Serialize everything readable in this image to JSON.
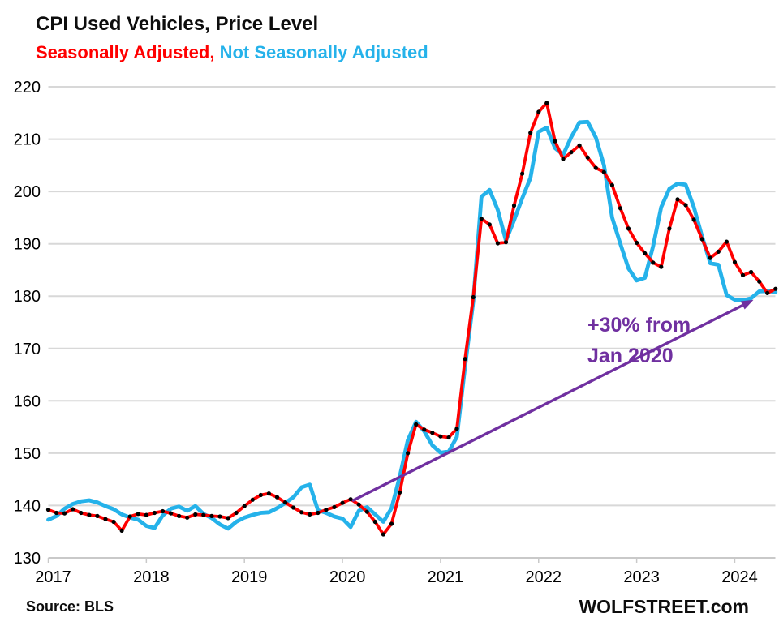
{
  "header": {
    "title": "CPI Used Vehicles, Price Level",
    "legend": {
      "sa_label": "Seasonally Adjusted",
      "separator": ", ",
      "nsa_label": "Not Seasonally Adjusted"
    }
  },
  "footer": {
    "source_label": "Source: BLS",
    "site_label": "WOLFSTREET.com"
  },
  "colors": {
    "sa": "#ff0000",
    "nsa": "#25b2ea",
    "marker": "#000000",
    "annotation": "#7030a0",
    "gridline": "#d8d8d8",
    "axis": "#c9c9c9",
    "text": "#000000"
  },
  "chart_data": {
    "type": "line",
    "title": "CPI Used Vehicles, Price Level",
    "x_unit": "month",
    "x_start": "2017-01",
    "x_end": "2024-06",
    "x_tick_labels": [
      "2017",
      "2018",
      "2019",
      "2020",
      "2021",
      "2022",
      "2023",
      "2024"
    ],
    "ylim": [
      130,
      220
    ],
    "y_ticks": [
      130,
      140,
      150,
      160,
      170,
      180,
      190,
      200,
      210,
      220
    ],
    "grid": "horizontal",
    "legend_position": "top-left-as-subtitle",
    "series": [
      {
        "name": "Seasonally Adjusted",
        "color": "#ff0000",
        "markers": true,
        "values": [
          139.2,
          138.6,
          138.5,
          139.3,
          138.6,
          138.2,
          138.0,
          137.4,
          136.9,
          135.2,
          137.9,
          138.4,
          138.2,
          138.6,
          138.9,
          138.5,
          138.0,
          137.7,
          138.3,
          138.2,
          138.0,
          137.9,
          137.6,
          138.6,
          139.9,
          141.1,
          142.0,
          142.3,
          141.6,
          140.6,
          139.6,
          138.7,
          138.3,
          138.6,
          139.2,
          139.7,
          140.5,
          141.2,
          140.2,
          138.8,
          136.9,
          134.5,
          136.5,
          142.5,
          150.0,
          155.5,
          154.5,
          153.9,
          153.2,
          153.0,
          154.7,
          168.0,
          179.8,
          194.8,
          193.7,
          190.1,
          190.3,
          197.3,
          203.4,
          211.2,
          215.2,
          216.9,
          209.6,
          206.2,
          207.5,
          208.8,
          206.5,
          204.5,
          203.7,
          201.2,
          196.8,
          192.9,
          190.2,
          188.2,
          186.4,
          185.6,
          192.9,
          198.5,
          197.4,
          194.6,
          190.9,
          187.3,
          188.5,
          190.4,
          186.5,
          184.0,
          184.6,
          182.8,
          180.6,
          181.4
        ]
      },
      {
        "name": "Not Seasonally Adjusted",
        "color": "#25b2ea",
        "markers": false,
        "values": [
          137.3,
          138.0,
          139.4,
          140.3,
          140.8,
          141.0,
          140.6,
          139.9,
          139.3,
          138.3,
          137.7,
          137.3,
          136.1,
          135.7,
          138.1,
          139.4,
          139.8,
          139.0,
          139.9,
          138.4,
          137.6,
          136.4,
          135.6,
          136.9,
          137.7,
          138.2,
          138.6,
          138.7,
          139.5,
          140.5,
          141.6,
          143.5,
          144.0,
          139.1,
          138.6,
          137.9,
          137.5,
          135.9,
          139.0,
          139.7,
          138.3,
          136.9,
          139.5,
          145.5,
          152.5,
          156.0,
          154.2,
          151.5,
          150.1,
          150.3,
          153.1,
          166.5,
          179.0,
          199.0,
          200.3,
          196.5,
          190.6,
          194.5,
          198.7,
          202.6,
          211.4,
          212.2,
          208.3,
          207.0,
          210.4,
          213.2,
          213.3,
          210.3,
          205.0,
          195.0,
          190.0,
          185.3,
          183.0,
          183.5,
          189.5,
          197.0,
          200.5,
          201.5,
          201.3,
          197.0,
          191.4,
          186.3,
          186.0,
          180.2,
          179.3,
          179.2,
          179.6,
          180.9,
          181.0,
          180.8
        ]
      }
    ],
    "annotation": {
      "lines": [
        "+30% from",
        "Jan 2020"
      ],
      "arrow": {
        "from_label": "Jan 2020",
        "from_month_index": 37.2,
        "from_value": 140.9,
        "to_month_index": 86.3,
        "to_value": 179.3
      }
    }
  }
}
